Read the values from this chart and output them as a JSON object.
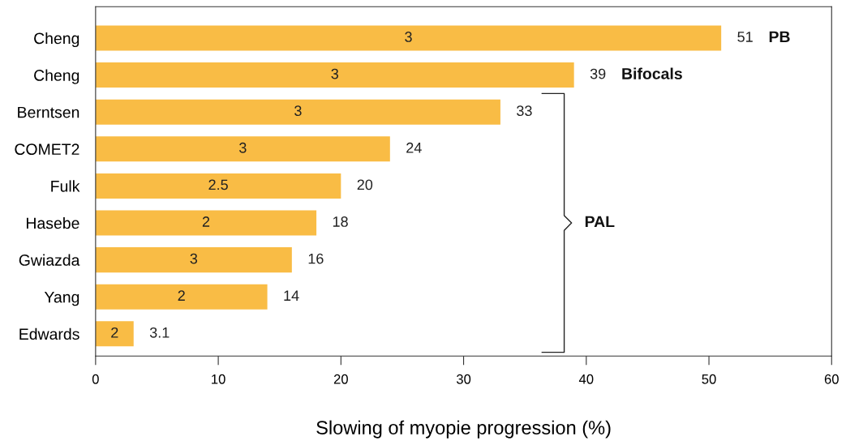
{
  "chart_data": {
    "type": "bar",
    "orientation": "horizontal",
    "categories": [
      "Cheng",
      "Cheng",
      "Berntsen",
      "COMET2",
      "Fulk",
      "Hasebe",
      "Gwiazda",
      "Yang",
      "Edwards"
    ],
    "values": [
      51,
      39,
      33,
      24,
      20,
      18,
      16,
      14,
      3.1
    ],
    "color": "#f9bc45",
    "data_labels": true,
    "xlabel": "Slowing of myopie progression (%)",
    "xlim": [
      0,
      60
    ],
    "xticks": [
      0,
      10,
      20,
      30,
      40,
      50,
      60
    ],
    "grid": false,
    "annotations": [
      "3",
      "3",
      "3",
      "3",
      "2.5",
      "2",
      "3",
      "2",
      "2",
      "PB",
      "Bifocals",
      "PAL"
    ]
  }
}
